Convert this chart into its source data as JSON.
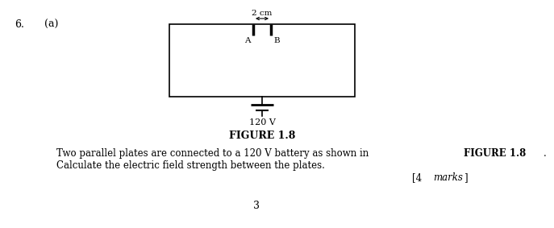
{
  "question_number": "6.",
  "sub_label": "(a)",
  "figure_label": "FIGURE 1.8",
  "distance_label": "2 cm",
  "voltage_label": "120 V",
  "plate_A_label": "A",
  "plate_B_label": "B",
  "body_line1_pre": "Two parallel plates are connected to a 120 V battery as shown in ",
  "body_line1_bold": "FIGURE 1.8",
  "body_line1_post": ".",
  "body_line2": "Calculate the electric field strength between the plates.",
  "marks_bracket_open": "[4 ",
  "marks_italic": "marks",
  "marks_bracket_close": "]",
  "page_number": "3",
  "bg_color": "#ffffff",
  "fg_color": "#000000",
  "fontsize_body": 8.5,
  "fontsize_small": 7.5,
  "fontsize_question": 9,
  "fontsize_figure": 9
}
